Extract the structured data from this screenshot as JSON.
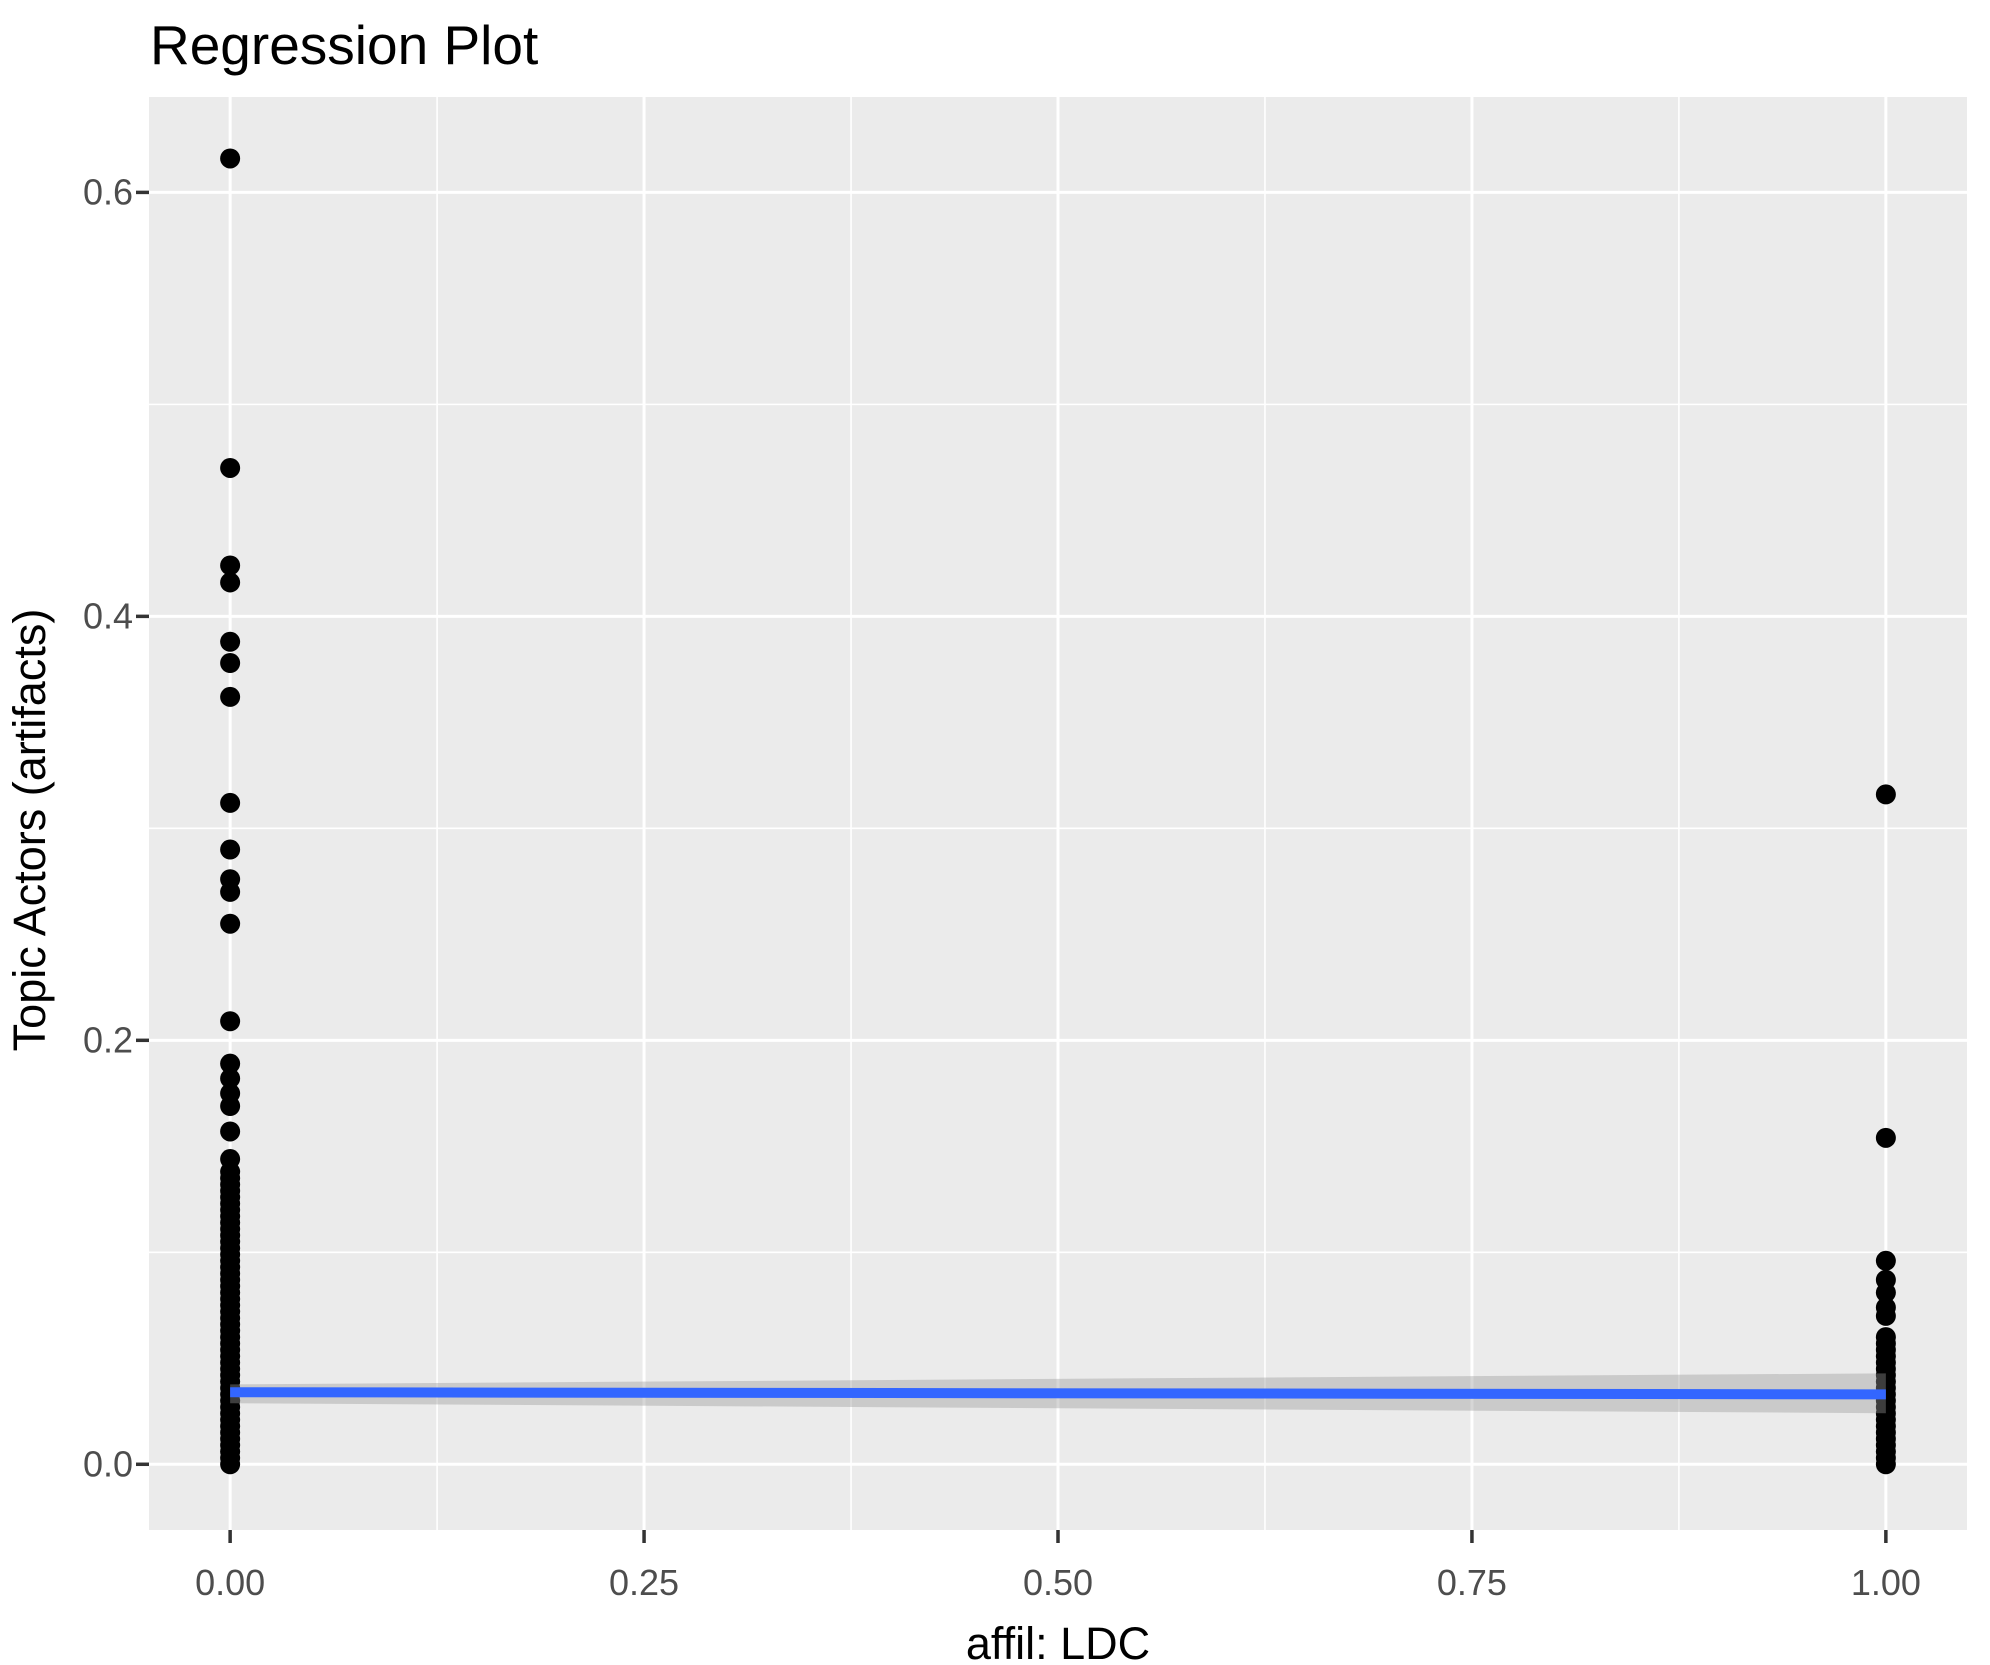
{
  "chart_data": {
    "type": "scatter",
    "title": "Regression Plot",
    "xlabel": "affil: LDC",
    "ylabel": "Topic Actors (artifacts)",
    "xlim": [
      -0.049,
      1.049
    ],
    "ylim": [
      -0.031,
      0.645
    ],
    "grid": "on",
    "legend": "none",
    "x_ticks": [
      0.0,
      0.25,
      0.5,
      0.75,
      1.0
    ],
    "x_tick_labels": [
      "0.00",
      "0.25",
      "0.50",
      "0.75",
      "1.00"
    ],
    "x_minor_ticks": [
      0.125,
      0.375,
      0.625,
      0.875
    ],
    "y_ticks": [
      0.0,
      0.2,
      0.4,
      0.6
    ],
    "y_tick_labels": [
      "0.0",
      "0.2",
      "0.4",
      "0.6"
    ],
    "y_minor_ticks": [
      0.1,
      0.3,
      0.5
    ],
    "series": [
      {
        "name": "affil LDC = 0",
        "x": 0.0,
        "values": [
          0.0,
          0.003,
          0.006,
          0.009,
          0.012,
          0.015,
          0.018,
          0.021,
          0.024,
          0.027,
          0.03,
          0.033,
          0.036,
          0.039,
          0.042,
          0.045,
          0.048,
          0.051,
          0.054,
          0.057,
          0.06,
          0.063,
          0.066,
          0.069,
          0.072,
          0.075,
          0.078,
          0.081,
          0.084,
          0.087,
          0.09,
          0.093,
          0.096,
          0.099,
          0.102,
          0.105,
          0.108,
          0.111,
          0.114,
          0.117,
          0.12,
          0.123,
          0.126,
          0.129,
          0.132,
          0.135,
          0.138,
          0.144,
          0.157,
          0.169,
          0.175,
          0.182,
          0.189,
          0.209,
          0.255,
          0.27,
          0.276,
          0.29,
          0.312,
          0.362,
          0.378,
          0.388,
          0.416,
          0.424,
          0.47,
          0.616
        ]
      },
      {
        "name": "affil LDC = 1",
        "x": 1.0,
        "values": [
          0.0,
          0.003,
          0.006,
          0.009,
          0.012,
          0.015,
          0.018,
          0.021,
          0.024,
          0.027,
          0.03,
          0.033,
          0.036,
          0.039,
          0.042,
          0.045,
          0.048,
          0.051,
          0.054,
          0.057,
          0.06,
          0.07,
          0.074,
          0.081,
          0.087,
          0.096,
          0.154,
          0.316
        ]
      }
    ],
    "regression": {
      "line": {
        "x": [
          0.0,
          1.0
        ],
        "y": [
          0.034,
          0.033
        ]
      },
      "band": {
        "x": [
          0.0,
          1.0
        ],
        "upper": [
          0.0377,
          0.0429
        ],
        "lower": [
          0.0288,
          0.0241
        ]
      }
    },
    "colors": {
      "background": "#FFFFFF",
      "panel": "#EBEBEB",
      "gridline": "#FFFFFF",
      "point": "#000000",
      "regression_line": "#3366FF",
      "confidence_band": "#999999",
      "tick_text": "#4D4D4D",
      "tick_mark": "#333333",
      "title_text": "#000000"
    }
  }
}
